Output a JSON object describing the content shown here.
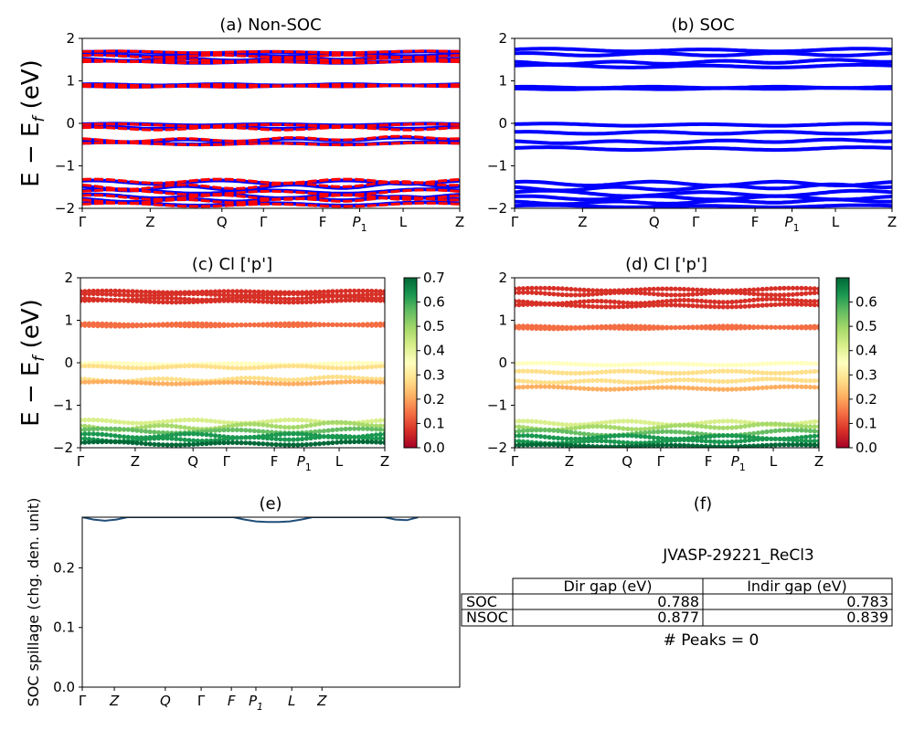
{
  "chart_data": [
    {
      "id": "a",
      "type": "line",
      "title": "(a) Non-SOC",
      "ylabel": "E − E_f (eV)",
      "ylim": [
        -2,
        2
      ],
      "yticks": [
        -2,
        -1,
        0,
        1,
        2
      ],
      "kpoints": [
        "Γ",
        "Z",
        "Q",
        "Γ",
        "F",
        "P1",
        "L",
        "Z"
      ],
      "kpos": [
        0,
        0.18,
        0.37,
        0.48,
        0.637,
        0.735,
        0.85,
        1.0
      ],
      "series": [
        {
          "color": "#0000ff",
          "bands": [
            {
              "base": 1.68,
              "amp": 0.03
            },
            {
              "base": 1.62,
              "amp": 0.04
            },
            {
              "base": 1.52,
              "amp": 0.05
            },
            {
              "base": 1.46,
              "amp": 0.04
            },
            {
              "base": 0.92,
              "amp": 0.03
            },
            {
              "base": 0.88,
              "amp": 0.02
            },
            {
              "base": -0.02,
              "amp": 0.03
            },
            {
              "base": -0.08,
              "amp": 0.05
            },
            {
              "base": -0.38,
              "amp": 0.06
            },
            {
              "base": -0.46,
              "amp": 0.04
            },
            {
              "base": -1.35,
              "amp": 0.08
            },
            {
              "base": -1.48,
              "amp": 0.1
            },
            {
              "base": -1.58,
              "amp": 0.08
            },
            {
              "base": -1.68,
              "amp": 0.09
            },
            {
              "base": -1.78,
              "amp": 0.07
            },
            {
              "base": -1.88,
              "amp": 0.06
            }
          ]
        },
        {
          "color": "#ff0000",
          "bands": [
            {
              "base": 1.69,
              "amp": 0.03
            },
            {
              "base": 1.6,
              "amp": 0.05
            },
            {
              "base": 1.5,
              "amp": 0.05
            },
            {
              "base": 1.45,
              "amp": 0.03
            },
            {
              "base": 0.91,
              "amp": 0.03
            },
            {
              "base": 0.87,
              "amp": 0.02
            },
            {
              "base": -0.03,
              "amp": 0.04
            },
            {
              "base": -0.1,
              "amp": 0.06
            },
            {
              "base": -0.36,
              "amp": 0.07
            },
            {
              "base": -0.47,
              "amp": 0.04
            },
            {
              "base": -1.32,
              "amp": 0.09
            },
            {
              "base": -1.45,
              "amp": 0.1
            },
            {
              "base": -1.6,
              "amp": 0.09
            },
            {
              "base": -1.7,
              "amp": 0.1
            },
            {
              "base": -1.8,
              "amp": 0.08
            },
            {
              "base": -1.9,
              "amp": 0.06
            }
          ]
        }
      ]
    },
    {
      "id": "b",
      "type": "line",
      "title": "(b) SOC",
      "ylim": [
        -2,
        2
      ],
      "yticks": [
        -2,
        -1,
        0,
        1,
        2
      ],
      "kpoints": [
        "Γ",
        "Z",
        "Q",
        "Γ",
        "F",
        "P1",
        "L",
        "Z"
      ],
      "kpos": [
        0,
        0.18,
        0.37,
        0.48,
        0.637,
        0.735,
        0.85,
        1.0
      ],
      "series": [
        {
          "color": "#0000ff",
          "bands": [
            {
              "base": 1.74,
              "amp": 0.05
            },
            {
              "base": 1.65,
              "amp": 0.06
            },
            {
              "base": 1.45,
              "amp": 0.06
            },
            {
              "base": 1.36,
              "amp": 0.05
            },
            {
              "base": 0.86,
              "amp": 0.03
            },
            {
              "base": 0.82,
              "amp": 0.02
            },
            {
              "base": -0.02,
              "amp": 0.04
            },
            {
              "base": -0.2,
              "amp": 0.05
            },
            {
              "base": -0.42,
              "amp": 0.05
            },
            {
              "base": -0.58,
              "amp": 0.05
            },
            {
              "base": -1.38,
              "amp": 0.09
            },
            {
              "base": -1.5,
              "amp": 0.08
            },
            {
              "base": -1.62,
              "amp": 0.1
            },
            {
              "base": -1.72,
              "amp": 0.08
            },
            {
              "base": -1.84,
              "amp": 0.06
            },
            {
              "base": -1.94,
              "amp": 0.04
            }
          ]
        }
      ]
    },
    {
      "id": "c",
      "type": "scatter",
      "title": "(c)  Cl ['p']",
      "ylabel": "E − E_f (eV)",
      "ylim": [
        -2,
        2
      ],
      "yticks": [
        -2,
        -1,
        0,
        1,
        2
      ],
      "kpoints": [
        "Γ",
        "Z",
        "Q",
        "Γ",
        "F",
        "P1",
        "L",
        "Z"
      ],
      "kpos": [
        0,
        0.18,
        0.37,
        0.48,
        0.637,
        0.735,
        0.85,
        1.0
      ],
      "colorbar": {
        "min": 0.0,
        "max": 0.7,
        "ticks": [
          "0.0",
          "0.1",
          "0.2",
          "0.3",
          "0.4",
          "0.5",
          "0.6",
          "0.7"
        ]
      },
      "bands": [
        {
          "base": 1.68,
          "amp": 0.03,
          "weight": 0.08
        },
        {
          "base": 1.62,
          "amp": 0.04,
          "weight": 0.1
        },
        {
          "base": 1.52,
          "amp": 0.05,
          "weight": 0.1
        },
        {
          "base": 1.46,
          "amp": 0.04,
          "weight": 0.09
        },
        {
          "base": 0.92,
          "amp": 0.03,
          "weight": 0.14
        },
        {
          "base": 0.88,
          "amp": 0.02,
          "weight": 0.15
        },
        {
          "base": -0.02,
          "amp": 0.03,
          "weight": 0.32
        },
        {
          "base": -0.08,
          "amp": 0.05,
          "weight": 0.3
        },
        {
          "base": -0.38,
          "amp": 0.06,
          "weight": 0.25
        },
        {
          "base": -0.46,
          "amp": 0.04,
          "weight": 0.24
        },
        {
          "base": -1.35,
          "amp": 0.08,
          "weight": 0.45
        },
        {
          "base": -1.48,
          "amp": 0.1,
          "weight": 0.5
        },
        {
          "base": -1.58,
          "amp": 0.08,
          "weight": 0.58
        },
        {
          "base": -1.68,
          "amp": 0.09,
          "weight": 0.62
        },
        {
          "base": -1.78,
          "amp": 0.07,
          "weight": 0.66
        },
        {
          "base": -1.88,
          "amp": 0.06,
          "weight": 0.68
        }
      ]
    },
    {
      "id": "d",
      "type": "scatter",
      "title": "(d) Cl ['p']",
      "ylim": [
        -2,
        2
      ],
      "yticks": [
        -2,
        -1,
        0,
        1,
        2
      ],
      "kpoints": [
        "Γ",
        "Z",
        "Q",
        "Γ",
        "F",
        "P1",
        "L",
        "Z"
      ],
      "kpos": [
        0,
        0.18,
        0.37,
        0.48,
        0.637,
        0.735,
        0.85,
        1.0
      ],
      "colorbar": {
        "min": 0.0,
        "max": 0.7,
        "ticks": [
          "0.0",
          "0.1",
          "0.2",
          "0.3",
          "0.4",
          "0.5",
          "0.6"
        ]
      },
      "bands": [
        {
          "base": 1.74,
          "amp": 0.05,
          "weight": 0.08
        },
        {
          "base": 1.65,
          "amp": 0.06,
          "weight": 0.09
        },
        {
          "base": 1.45,
          "amp": 0.06,
          "weight": 0.1
        },
        {
          "base": 1.36,
          "amp": 0.05,
          "weight": 0.1
        },
        {
          "base": 0.86,
          "amp": 0.03,
          "weight": 0.15
        },
        {
          "base": 0.82,
          "amp": 0.02,
          "weight": 0.16
        },
        {
          "base": -0.02,
          "amp": 0.04,
          "weight": 0.33
        },
        {
          "base": -0.2,
          "amp": 0.05,
          "weight": 0.3
        },
        {
          "base": -0.42,
          "amp": 0.05,
          "weight": 0.27
        },
        {
          "base": -0.58,
          "amp": 0.05,
          "weight": 0.24
        },
        {
          "base": -1.38,
          "amp": 0.09,
          "weight": 0.44
        },
        {
          "base": -1.5,
          "amp": 0.08,
          "weight": 0.5
        },
        {
          "base": -1.62,
          "amp": 0.1,
          "weight": 0.57
        },
        {
          "base": -1.72,
          "amp": 0.08,
          "weight": 0.62
        },
        {
          "base": -1.84,
          "amp": 0.06,
          "weight": 0.66
        },
        {
          "base": -1.94,
          "amp": 0.04,
          "weight": 0.68
        }
      ]
    },
    {
      "id": "e",
      "type": "line",
      "title": "(e)",
      "ylabel": "SOC spillage (chg. den. unit)",
      "ylim": [
        0,
        0.285
      ],
      "yticks": [
        0.0,
        0.1,
        0.2
      ],
      "kpoints": [
        "Γ",
        "Z",
        "Q",
        "Γ",
        "F",
        "P1",
        "L",
        "Z"
      ],
      "kpos": [
        0,
        0.085,
        0.22,
        0.315,
        0.395,
        0.46,
        0.555,
        0.635
      ],
      "series": [
        {
          "color": "#1f4e79",
          "x": [
            0.0,
            0.03,
            0.06,
            0.09,
            0.12,
            0.4,
            0.43,
            0.46,
            0.49,
            0.52,
            0.55,
            0.58,
            0.61,
            0.64,
            0.67,
            0.8,
            0.83,
            0.86,
            0.89
          ],
          "y": [
            0.285,
            0.281,
            0.279,
            0.281,
            0.285,
            0.285,
            0.281,
            0.278,
            0.277,
            0.277,
            0.278,
            0.281,
            0.285,
            0.285,
            0.285,
            0.285,
            0.281,
            0.28,
            0.285
          ]
        }
      ]
    },
    {
      "id": "f",
      "type": "table",
      "title": "(f)",
      "caption": "JVASP-29221_ReCl3",
      "columns": [
        "",
        "Dir gap (eV)",
        "Indir gap (eV)"
      ],
      "rows": [
        [
          "SOC",
          "0.788",
          "0.783"
        ],
        [
          "NSOC",
          "0.877",
          "0.839"
        ]
      ],
      "footer": "# Peaks = 0"
    }
  ]
}
